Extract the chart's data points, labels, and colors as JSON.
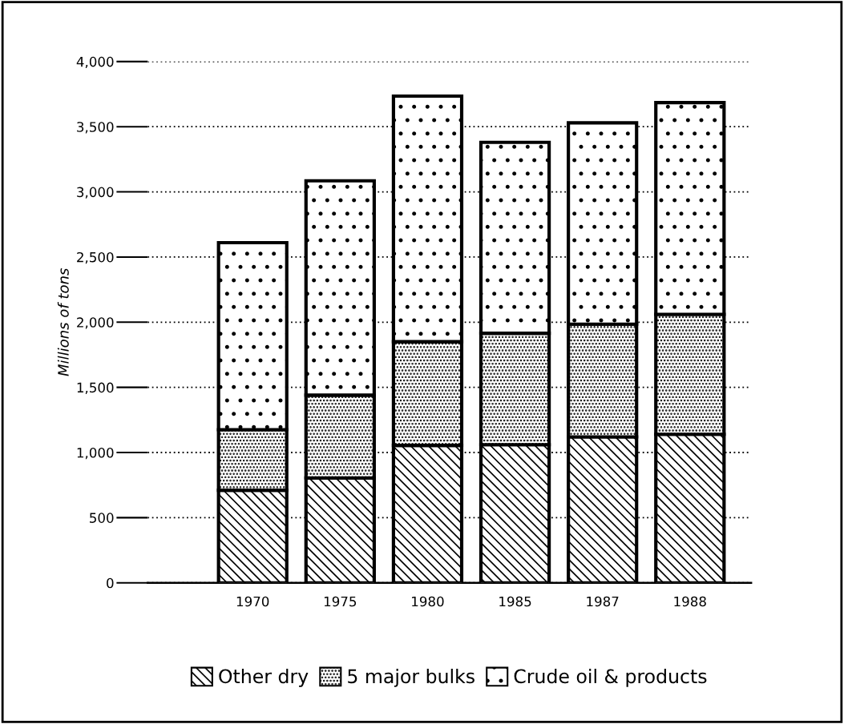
{
  "chart_data": {
    "type": "bar",
    "stacked": true,
    "ylabel": "Millions of tons",
    "categories": [
      "1970",
      "1975",
      "1980",
      "1985",
      "1987",
      "1988"
    ],
    "series": [
      {
        "name": "Other dry",
        "color": "#000000",
        "values": [
          710,
          805,
          1055,
          1060,
          1120,
          1140
        ]
      },
      {
        "name": "5 major bulks",
        "color": "#000000",
        "values": [
          465,
          635,
          795,
          855,
          865,
          920
        ]
      },
      {
        "name": "Crude oil & products",
        "color": "#000000",
        "values": [
          1435,
          1645,
          1885,
          1465,
          1545,
          1625
        ]
      }
    ],
    "ylim": [
      0,
      4000
    ],
    "yticks": [
      0,
      {
        "value": 500,
        "label": "500"
      },
      {
        "value": 1000,
        "label": "1,000"
      },
      {
        "value": 1500,
        "label": "1,500"
      },
      {
        "value": 2000,
        "label": "2,000"
      },
      {
        "value": 2500,
        "label": "2,500"
      },
      {
        "value": 3000,
        "label": "3,000"
      },
      {
        "value": 3500,
        "label": "3,500"
      },
      {
        "value": 4000,
        "label": "4,000"
      }
    ],
    "grid": "y",
    "legend": "bottom"
  }
}
